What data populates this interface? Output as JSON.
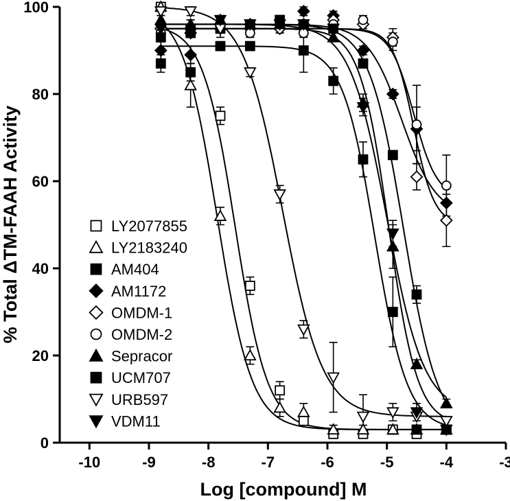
{
  "chart_data": {
    "type": "scatter",
    "title": "",
    "xlabel": "Log [compound] M",
    "ylabel": "% Total ΔTM-FAAH Activity",
    "xlim": [
      -10.5,
      -3
    ],
    "ylim": [
      0,
      100
    ],
    "x_ticks": [
      -10,
      -9,
      -8,
      -7,
      -6,
      -5,
      -4,
      -3
    ],
    "y_ticks": [
      0,
      20,
      40,
      60,
      80,
      100
    ],
    "x_tick_labels": [
      "-10",
      "-9",
      "-8",
      "-7",
      "-6",
      "-5",
      "-4",
      "-3"
    ],
    "y_tick_labels": [
      "0",
      "20",
      "40",
      "60",
      "80",
      "100"
    ],
    "grid": false,
    "legend_position": "left-center",
    "series": [
      {
        "name": "LY2077855",
        "marker": "square-open",
        "x": [
          -8.8,
          -8.3,
          -7.8,
          -7.3,
          -6.8,
          -6.4,
          -5.9,
          -5.4,
          -4.9,
          -4.5,
          -4.0
        ],
        "y": [
          100,
          95,
          75,
          36,
          12,
          5,
          2,
          2,
          3,
          2,
          3
        ],
        "err": [
          0,
          2,
          2,
          2,
          2,
          1,
          1,
          1,
          1,
          1,
          1
        ],
        "fit": {
          "top": 96,
          "bottom": 3,
          "logIC50": -7.55,
          "hill": 1.6
        }
      },
      {
        "name": "LY2183240",
        "marker": "triangle-up-open",
        "x": [
          -8.8,
          -8.3,
          -7.8,
          -7.3,
          -6.8,
          -6.4,
          -5.9,
          -5.4,
          -4.9,
          -4.5,
          -4.0
        ],
        "y": [
          100,
          82,
          52,
          20,
          8,
          7,
          3,
          3,
          3,
          3,
          3
        ],
        "err": [
          0,
          5,
          2,
          2,
          2,
          2,
          1,
          1,
          1,
          1,
          1
        ],
        "fit": {
          "top": 100,
          "bottom": 3,
          "logIC50": -7.85,
          "hill": 1.5
        }
      },
      {
        "name": "AM404",
        "marker": "square-filled",
        "x": [
          -8.8,
          -8.3,
          -7.8,
          -7.3,
          -6.4,
          -5.9,
          -5.4,
          -4.9,
          -4.5,
          -4.0
        ],
        "y": [
          87,
          85,
          91,
          91,
          90,
          83,
          65,
          30,
          3,
          3
        ],
        "err": [
          2,
          2,
          1,
          1,
          5,
          3,
          4,
          8,
          1,
          1
        ],
        "fit": {
          "top": 91,
          "bottom": 3,
          "logIC50": -5.2,
          "hill": 1.6
        }
      },
      {
        "name": "AM1172",
        "marker": "diamond-filled",
        "x": [
          -8.8,
          -8.3,
          -7.8,
          -7.3,
          -6.8,
          -6.4,
          -5.9,
          -5.4,
          -4.9,
          -4.5,
          -4.0
        ],
        "y": [
          90,
          89,
          95,
          96,
          95,
          99,
          98,
          90,
          80,
          72,
          55
        ],
        "err": [
          2,
          2,
          2,
          1,
          1,
          1,
          1,
          1,
          1,
          5,
          4
        ],
        "fit": {
          "top": 96,
          "bottom": 52,
          "logIC50": -4.75,
          "hill": 1.5
        }
      },
      {
        "name": "OMDM-1",
        "marker": "diamond-open",
        "x": [
          -8.8,
          -8.3,
          -7.8,
          -7.3,
          -6.8,
          -6.4,
          -5.9,
          -5.4,
          -4.9,
          -4.5,
          -4.0
        ],
        "y": [
          95,
          94,
          96,
          95,
          95,
          96,
          97,
          96,
          93,
          61,
          51
        ],
        "err": [
          1,
          1,
          1,
          1,
          1,
          1,
          1,
          1,
          2,
          3,
          6
        ],
        "fit": {
          "top": 95,
          "bottom": 50,
          "logIC50": -4.55,
          "hill": 2.5
        }
      },
      {
        "name": "OMDM-2",
        "marker": "circle-open",
        "x": [
          -8.8,
          -8.3,
          -7.8,
          -7.3,
          -6.8,
          -6.4,
          -5.9,
          -5.4,
          -4.9,
          -4.5,
          -4.0
        ],
        "y": [
          94,
          95,
          96,
          94,
          96,
          94,
          96,
          97,
          92,
          73,
          59
        ],
        "err": [
          1,
          1,
          1,
          1,
          1,
          1,
          1,
          1,
          2,
          9,
          7
        ],
        "fit": {
          "top": 95,
          "bottom": 56,
          "logIC50": -4.55,
          "hill": 2.2
        }
      },
      {
        "name": "Sepracor",
        "marker": "triangle-up-filled",
        "x": [
          -8.8,
          -8.3,
          -7.8,
          -7.3,
          -6.8,
          -6.4,
          -5.9,
          -5.4,
          -4.9,
          -4.5,
          -4.0
        ],
        "y": [
          97,
          96,
          97,
          96,
          96,
          96,
          93,
          78,
          45,
          18,
          9
        ],
        "err": [
          1,
          1,
          1,
          1,
          1,
          1,
          1,
          2,
          5,
          1,
          1
        ],
        "fit": {
          "top": 96,
          "bottom": 7,
          "logIC50": -5.0,
          "hill": 1.4
        }
      },
      {
        "name": "UCM707",
        "marker": "square-filled",
        "x": [
          -8.8,
          -8.3,
          -7.8,
          -7.3,
          -6.8,
          -6.4,
          -5.9,
          -5.4,
          -4.9,
          -4.5,
          -4.0
        ],
        "y": [
          93,
          94,
          95,
          96,
          97,
          96,
          95,
          87,
          66,
          34,
          3
        ],
        "err": [
          1,
          1,
          1,
          1,
          1,
          1,
          1,
          1,
          1,
          2,
          1
        ],
        "fit": {
          "top": 96,
          "bottom": 2,
          "logIC50": -4.72,
          "hill": 1.5
        }
      },
      {
        "name": "URB597",
        "marker": "triangle-down-open",
        "x": [
          -8.8,
          -8.3,
          -7.8,
          -7.3,
          -6.8,
          -6.4,
          -5.9,
          -5.4,
          -4.9,
          -4.5,
          -4.0
        ],
        "y": [
          99,
          99,
          95,
          85,
          57,
          26,
          15,
          6,
          7,
          6,
          5
        ],
        "err": [
          1,
          1,
          1,
          1,
          2,
          2,
          8,
          5,
          2,
          1,
          1
        ],
        "fit": {
          "top": 100,
          "bottom": 6,
          "logIC50": -6.75,
          "hill": 1.3
        }
      },
      {
        "name": "VDM11",
        "marker": "triangle-down-filled",
        "x": [
          -8.8,
          -8.3,
          -7.8,
          -7.3,
          -6.8,
          -6.4,
          -5.9,
          -5.4,
          -4.9,
          -4.5,
          -4.0
        ],
        "y": [
          95,
          94,
          97,
          96,
          96,
          96,
          95,
          77,
          48,
          7,
          3
        ],
        "err": [
          1,
          1,
          1,
          1,
          1,
          1,
          1,
          2,
          3,
          2,
          1
        ],
        "fit": {
          "top": 95,
          "bottom": 4,
          "logIC50": -4.97,
          "hill": 1.8
        }
      }
    ]
  }
}
